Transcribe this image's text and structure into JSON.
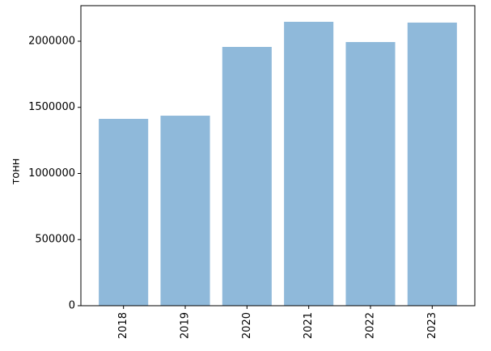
{
  "chart_data": {
    "type": "bar",
    "ylabel": "тонн",
    "categories": [
      "2018",
      "2019",
      "2020",
      "2021",
      "2022",
      "2023"
    ],
    "values": [
      1413000,
      1437000,
      1957000,
      2147000,
      1994000,
      2141000
    ],
    "color": "#8fb9da",
    "ylim": [
      0,
      2269000
    ],
    "yticks": [
      0,
      500000,
      1000000,
      1500000,
      2000000
    ],
    "grid": false
  }
}
